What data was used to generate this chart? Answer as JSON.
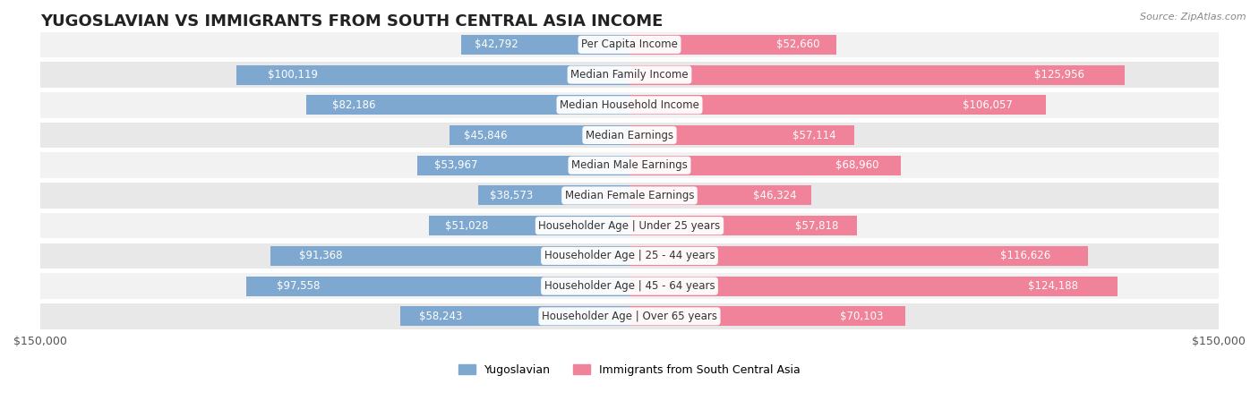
{
  "title": "YUGOSLAVIAN VS IMMIGRANTS FROM SOUTH CENTRAL ASIA INCOME",
  "source": "Source: ZipAtlas.com",
  "categories": [
    "Per Capita Income",
    "Median Family Income",
    "Median Household Income",
    "Median Earnings",
    "Median Male Earnings",
    "Median Female Earnings",
    "Householder Age | Under 25 years",
    "Householder Age | 25 - 44 years",
    "Householder Age | 45 - 64 years",
    "Householder Age | Over 65 years"
  ],
  "yugoslav_values": [
    42792,
    100119,
    82186,
    45846,
    53967,
    38573,
    51028,
    91368,
    97558,
    58243
  ],
  "immigrant_values": [
    52660,
    125956,
    106057,
    57114,
    68960,
    46324,
    57818,
    116626,
    124188,
    70103
  ],
  "yugoslav_labels": [
    "$42,792",
    "$100,119",
    "$82,186",
    "$45,846",
    "$53,967",
    "$38,573",
    "$51,028",
    "$91,368",
    "$97,558",
    "$58,243"
  ],
  "immigrant_labels": [
    "$52,660",
    "$125,956",
    "$106,057",
    "$57,114",
    "$68,960",
    "$46,324",
    "$57,818",
    "$116,626",
    "$124,188",
    "$70,103"
  ],
  "yugoslav_color": "#7fa8d0",
  "immigrant_color": "#f0829a",
  "yugoslav_label_color_dark": "#555555",
  "yugoslav_label_color_light": "#ffffff",
  "immigrant_label_color_dark": "#555555",
  "immigrant_label_color_light": "#ffffff",
  "max_value": 150000,
  "axis_label": "$150,000",
  "row_bg_color": "#f2f2f2",
  "row_bg_color_alt": "#e8e8e8",
  "legend_yugoslav": "Yugoslavian",
  "legend_immigrant": "Immigrants from South Central Asia",
  "title_fontsize": 13,
  "label_fontsize": 8.5,
  "category_fontsize": 8.5,
  "axis_fontsize": 9
}
